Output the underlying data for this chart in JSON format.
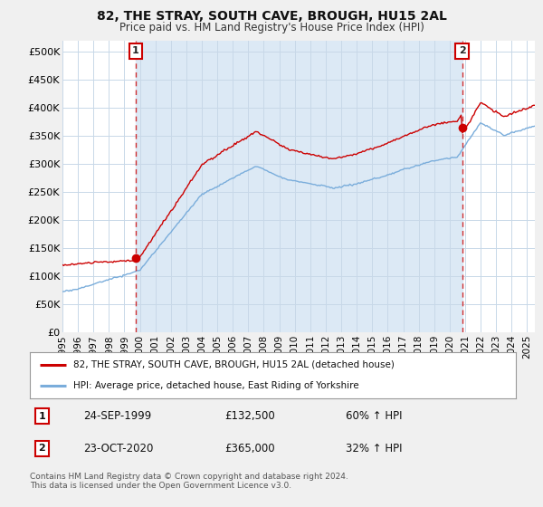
{
  "title": "82, THE STRAY, SOUTH CAVE, BROUGH, HU15 2AL",
  "subtitle": "Price paid vs. HM Land Registry's House Price Index (HPI)",
  "ylim": [
    0,
    520000
  ],
  "yticks": [
    0,
    50000,
    100000,
    150000,
    200000,
    250000,
    300000,
    350000,
    400000,
    450000,
    500000
  ],
  "ytick_labels": [
    "£0",
    "£50K",
    "£100K",
    "£150K",
    "£200K",
    "£250K",
    "£300K",
    "£350K",
    "£400K",
    "£450K",
    "£500K"
  ],
  "xlim_start": 1995.0,
  "xlim_end": 2025.5,
  "xticks": [
    1995,
    1996,
    1997,
    1998,
    1999,
    2000,
    2001,
    2002,
    2003,
    2004,
    2005,
    2006,
    2007,
    2008,
    2009,
    2010,
    2011,
    2012,
    2013,
    2014,
    2015,
    2016,
    2017,
    2018,
    2019,
    2020,
    2021,
    2022,
    2023,
    2024,
    2025
  ],
  "red_line_color": "#cc0000",
  "blue_line_color": "#7aaddb",
  "shade_color": "#dce9f5",
  "marker_color": "#cc0000",
  "marker1_x": 1999.73,
  "marker1_y": 132500,
  "marker2_x": 2020.81,
  "marker2_y": 365000,
  "annotation1": "1",
  "annotation2": "2",
  "legend_red_label": "82, THE STRAY, SOUTH CAVE, BROUGH, HU15 2AL (detached house)",
  "legend_blue_label": "HPI: Average price, detached house, East Riding of Yorkshire",
  "table_row1_num": "1",
  "table_row1_date": "24-SEP-1999",
  "table_row1_price": "£132,500",
  "table_row1_hpi": "60% ↑ HPI",
  "table_row2_num": "2",
  "table_row2_date": "23-OCT-2020",
  "table_row2_price": "£365,000",
  "table_row2_hpi": "32% ↑ HPI",
  "footer": "Contains HM Land Registry data © Crown copyright and database right 2024.\nThis data is licensed under the Open Government Licence v3.0.",
  "bg_color": "#f0f0f0",
  "plot_bg_color": "#ffffff",
  "grid_color": "#c8d8e8"
}
